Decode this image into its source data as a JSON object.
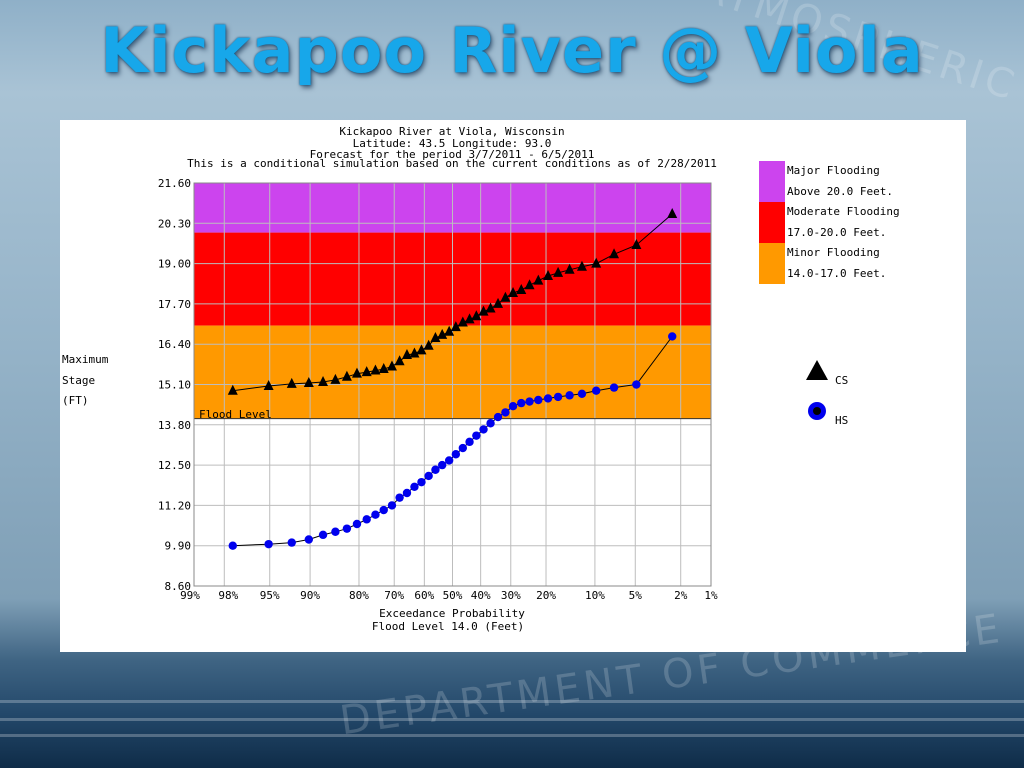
{
  "slide": {
    "title": "Kickapoo River @ Viola"
  },
  "chart_data": {
    "type": "scatter",
    "header_lines": [
      "Kickapoo River at Viola, Wisconsin",
      "Latitude: 43.5    Longitude:  93.0",
      "Forecast for the period 3/7/2011 - 6/5/2011",
      "This is a conditional simulation based on the current conditions as of 2/28/2011"
    ],
    "ylabel_lines": [
      "Maximum",
      "Stage",
      "(FT)"
    ],
    "xlabel": "Exceedance Probability",
    "subtitle": "Flood Level 14.0 (Feet)",
    "ylim": [
      8.6,
      21.6
    ],
    "y_ticks": [
      "21.60",
      "20.30",
      "19.00",
      "17.70",
      "16.40",
      "15.10",
      "13.80",
      "12.50",
      "11.20",
      "9.90",
      "8.60"
    ],
    "x_ticks": [
      "99%",
      "98%",
      "95%",
      "90%",
      "80%",
      "70%",
      "60%",
      "50%",
      "40%",
      "30%",
      "20%",
      "10%",
      "5%",
      "2%",
      "1%"
    ],
    "x_tick_values": [
      99,
      98,
      95,
      90,
      80,
      70,
      60,
      50,
      40,
      30,
      20,
      10,
      5,
      2,
      1
    ],
    "flood_level": 14.0,
    "flood_level_label": "Flood Level",
    "zones": [
      {
        "from": 20.0,
        "to": 21.6,
        "color": "#cc44ee",
        "legend_line1": "Major Flooding",
        "legend_line2": "Above 20.0 Feet."
      },
      {
        "from": 17.0,
        "to": 20.0,
        "color": "#ff0000",
        "legend_line1": "Moderate Flooding",
        "legend_line2": "17.0-20.0 Feet."
      },
      {
        "from": 14.0,
        "to": 17.0,
        "color": "#ff9900",
        "legend_line1": "Minor Flooding",
        "legend_line2": "14.0-17.0 Feet."
      }
    ],
    "series": [
      {
        "name": "CS",
        "marker": "triangle",
        "color": "#000000",
        "x": [
          97.6,
          95.1,
          92.6,
          90.2,
          87.8,
          85.4,
          82.9,
          80.5,
          78.0,
          75.6,
          73.2,
          70.7,
          68.3,
          65.9,
          63.4,
          61.0,
          58.5,
          56.1,
          53.7,
          51.2,
          48.8,
          46.3,
          43.9,
          41.5,
          39.0,
          36.6,
          34.1,
          31.7,
          29.3,
          26.8,
          24.4,
          22.0,
          19.5,
          17.1,
          14.6,
          12.2,
          9.8,
          7.3,
          4.9,
          2.4
        ],
        "y": [
          14.9,
          15.05,
          15.12,
          15.15,
          15.18,
          15.25,
          15.35,
          15.45,
          15.5,
          15.55,
          15.6,
          15.68,
          15.85,
          16.05,
          16.1,
          16.2,
          16.35,
          16.6,
          16.7,
          16.8,
          16.95,
          17.1,
          17.2,
          17.3,
          17.45,
          17.55,
          17.7,
          17.9,
          18.05,
          18.15,
          18.3,
          18.45,
          18.6,
          18.7,
          18.8,
          18.9,
          19.0,
          19.3,
          19.6,
          20.6
        ]
      },
      {
        "name": "HS",
        "marker": "circle",
        "color": "#0000ee",
        "x": [
          97.6,
          95.1,
          92.6,
          90.2,
          87.8,
          85.4,
          82.9,
          80.5,
          78.0,
          75.6,
          73.2,
          70.7,
          68.3,
          65.9,
          63.4,
          61.0,
          58.5,
          56.1,
          53.7,
          51.2,
          48.8,
          46.3,
          43.9,
          41.5,
          39.0,
          36.6,
          34.1,
          31.7,
          29.3,
          26.8,
          24.4,
          22.0,
          19.5,
          17.1,
          14.6,
          12.2,
          9.8,
          7.3,
          4.9,
          2.4
        ],
        "y": [
          9.9,
          9.95,
          10.0,
          10.1,
          10.25,
          10.35,
          10.45,
          10.6,
          10.75,
          10.9,
          11.05,
          11.2,
          11.45,
          11.6,
          11.8,
          11.95,
          12.15,
          12.35,
          12.5,
          12.65,
          12.85,
          13.05,
          13.25,
          13.45,
          13.65,
          13.85,
          14.05,
          14.2,
          14.4,
          14.5,
          14.55,
          14.6,
          14.65,
          14.7,
          14.75,
          14.8,
          14.9,
          15.0,
          15.1,
          16.65
        ]
      }
    ]
  }
}
